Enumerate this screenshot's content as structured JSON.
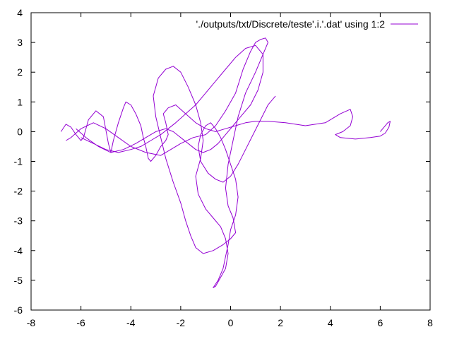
{
  "chart_data": {
    "type": "line",
    "title": "",
    "xlabel": "",
    "ylabel": "",
    "xlim": [
      -8,
      8
    ],
    "ylim": [
      -6,
      4
    ],
    "xticks": [
      -8,
      -6,
      -4,
      -2,
      0,
      2,
      4,
      6,
      8
    ],
    "yticks": [
      -6,
      -5,
      -4,
      -3,
      -2,
      -1,
      0,
      1,
      2,
      3,
      4
    ],
    "grid": false,
    "legend_position": "top-right",
    "series": [
      {
        "name": "'./outputs/txt/Discrete/teste'.i.'.dat' using 1:2",
        "color": "#9400d3",
        "x": [
          -6.8,
          -6.6,
          -6.4,
          -6.2,
          -6.0,
          -5.9,
          -5.7,
          -5.4,
          -5.1,
          -4.9,
          -4.8,
          -4.7,
          -4.5,
          -4.3,
          -4.2,
          -4.0,
          -3.8,
          -3.6,
          -3.5,
          -3.4,
          -3.3,
          -3.2,
          -3.0,
          -2.8,
          -2.6,
          -2.5,
          -2.6,
          -2.7,
          -2.5,
          -2.2,
          -1.8,
          -1.4,
          -1.0,
          -0.6,
          -0.2,
          0.2,
          0.6,
          1.0,
          1.5,
          2.2,
          3.0,
          3.8,
          4.4,
          4.8,
          4.9,
          4.8,
          4.5,
          4.2,
          4.4,
          5.0,
          5.6,
          6.0,
          6.2,
          6.35,
          6.4,
          6.3,
          6.0
        ],
        "y": [
          0.0,
          0.25,
          0.15,
          -0.1,
          -0.3,
          -0.2,
          0.4,
          0.7,
          0.5,
          -0.4,
          -0.7,
          -0.3,
          0.3,
          0.8,
          1.0,
          0.9,
          0.6,
          0.2,
          -0.2,
          -0.5,
          -0.9,
          -1.0,
          -0.8,
          -0.5,
          -0.3,
          -0.1,
          0.3,
          0.6,
          0.8,
          0.9,
          0.6,
          0.3,
          0.1,
          0.0,
          0.1,
          0.2,
          0.3,
          0.35,
          0.35,
          0.3,
          0.2,
          0.3,
          0.6,
          0.75,
          0.5,
          0.2,
          0.0,
          -0.1,
          -0.2,
          -0.25,
          -0.2,
          -0.15,
          -0.05,
          0.15,
          0.35,
          0.3,
          0.0
        ]
      },
      {
        "name": "",
        "color": "#9400d3",
        "x": [
          -6.6,
          -6.4,
          -6.0,
          -5.5,
          -5.0,
          -4.5,
          -4.0,
          -3.4,
          -2.8,
          -2.4,
          -2.0,
          -1.5,
          -1.0,
          -0.6,
          -0.2,
          0.2,
          0.5,
          0.8,
          1.0,
          1.2,
          1.4,
          1.5,
          1.3,
          1.0,
          0.6,
          0.3,
          0.1,
          -0.1,
          -0.2,
          -0.1,
          0.1,
          0.2,
          0.0,
          -0.3,
          -0.7,
          -1.1,
          -1.4,
          -1.6,
          -1.8,
          -2.0,
          -2.3,
          -2.6,
          -2.8,
          -3.0,
          -3.1,
          -2.9,
          -2.6,
          -2.3,
          -2.0,
          -1.7
        ],
        "y": [
          -0.3,
          -0.2,
          0.1,
          0.3,
          0.1,
          -0.2,
          -0.5,
          -0.7,
          -0.8,
          -0.6,
          -0.4,
          -0.2,
          -0.1,
          0.2,
          0.7,
          1.3,
          2.1,
          2.7,
          3.0,
          3.1,
          3.15,
          3.0,
          2.6,
          2.0,
          1.3,
          0.5,
          -0.3,
          -1.1,
          -1.9,
          -2.5,
          -2.9,
          -3.4,
          -3.6,
          -3.8,
          -4.0,
          -4.1,
          -3.9,
          -3.5,
          -3.0,
          -2.4,
          -1.7,
          -0.9,
          -0.2,
          0.5,
          1.2,
          1.8,
          2.1,
          2.2,
          2.0,
          1.5
        ]
      },
      {
        "name": "",
        "color": "#9400d3",
        "x": [
          -1.7,
          -1.4,
          -1.2,
          -1.1,
          -1.2,
          -1.4,
          -1.3,
          -1.0,
          -0.7,
          -0.4,
          -0.2,
          -0.1,
          -0.2,
          -0.4,
          -0.6,
          -0.7,
          -0.5,
          -0.3,
          -0.2,
          -0.1,
          0.0,
          0.2,
          0.3,
          0.2,
          0.0,
          -0.2,
          -0.4,
          -0.6,
          -0.8,
          -1.0,
          -1.2,
          -1.3,
          -1.2,
          -0.9,
          -0.6,
          -0.3,
          0.0,
          0.3,
          0.6,
          0.9,
          1.2,
          1.5,
          1.8
        ],
        "y": [
          1.5,
          0.9,
          0.3,
          -0.3,
          -0.9,
          -1.5,
          -2.1,
          -2.6,
          -2.9,
          -3.2,
          -3.6,
          -4.1,
          -4.6,
          -4.9,
          -5.2,
          -5.25,
          -5.0,
          -4.6,
          -4.2,
          -3.8,
          -3.3,
          -2.8,
          -2.2,
          -1.6,
          -1.1,
          -0.6,
          -0.2,
          0.1,
          0.3,
          0.2,
          -0.1,
          -0.5,
          -1.0,
          -1.4,
          -1.6,
          -1.7,
          -1.5,
          -1.1,
          -0.6,
          -0.1,
          0.4,
          0.9,
          1.2
        ]
      },
      {
        "name": "",
        "color": "#9400d3",
        "x": [
          -6.2,
          -5.8,
          -5.3,
          -4.8,
          -4.3,
          -3.8,
          -3.4,
          -3.0,
          -2.6,
          -2.3,
          -2.0,
          -1.7,
          -1.4,
          -1.1,
          -0.8,
          -0.5,
          -0.2,
          0.1,
          0.4,
          0.8,
          1.1,
          1.3,
          1.3,
          1.0,
          0.6,
          0.2,
          -0.2,
          -0.6,
          -1.0,
          -1.4,
          -1.8,
          -2.2,
          -2.5,
          -2.8,
          -3.2,
          -3.6,
          -4.0,
          -4.5,
          -5.0,
          -5.5,
          -6.0
        ],
        "y": [
          0.1,
          -0.2,
          -0.5,
          -0.7,
          -0.6,
          -0.4,
          -0.2,
          0.0,
          0.1,
          0.0,
          -0.2,
          -0.4,
          -0.6,
          -0.7,
          -0.6,
          -0.4,
          -0.1,
          0.2,
          0.5,
          0.9,
          1.4,
          2.0,
          2.6,
          2.9,
          2.8,
          2.5,
          2.1,
          1.7,
          1.3,
          0.9,
          0.6,
          0.3,
          0.1,
          -0.1,
          -0.3,
          -0.5,
          -0.6,
          -0.7,
          -0.6,
          -0.4,
          -0.2
        ]
      }
    ]
  }
}
